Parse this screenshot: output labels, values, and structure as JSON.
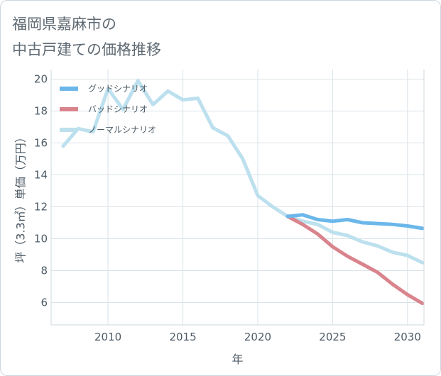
{
  "title_line1": "福岡県嘉麻市の",
  "title_line2": "中古戸建ての価格推移",
  "chart_data": {
    "type": "line",
    "xlabel": "年",
    "ylabel": "坪（3.3㎡）単価（万円）",
    "xlim": [
      2006.2,
      2031.1
    ],
    "ylim": [
      4.6,
      20.6
    ],
    "xticks": [
      2010,
      2015,
      2020,
      2025,
      2030
    ],
    "yticks": [
      6,
      8,
      10,
      12,
      14,
      16,
      18,
      20
    ],
    "grid": true,
    "legend_position": "top-left",
    "series": [
      {
        "name": "グッドシナリオ",
        "color": "#6bb7ea",
        "x": [
          2022,
          2023,
          2024,
          2025,
          2026,
          2027,
          2028,
          2029,
          2030,
          2031
        ],
        "y": [
          11.4,
          11.5,
          11.2,
          11.1,
          11.2,
          11.0,
          10.95,
          10.9,
          10.8,
          10.65
        ]
      },
      {
        "name": "バッドシナリオ",
        "color": "#d9848d",
        "x": [
          2022,
          2023,
          2024,
          2025,
          2026,
          2027,
          2028,
          2029,
          2030,
          2031
        ],
        "y": [
          11.4,
          10.9,
          10.3,
          9.5,
          8.9,
          8.4,
          7.9,
          7.15,
          6.5,
          5.95
        ]
      },
      {
        "name": "ノーマルシナリオ",
        "color": "#bde0ee",
        "x": [
          2007,
          2008,
          2009,
          2010,
          2011,
          2012,
          2013,
          2014,
          2015,
          2016,
          2017,
          2018,
          2019,
          2020,
          2021,
          2022,
          2023,
          2024,
          2025,
          2026,
          2027,
          2028,
          2029,
          2030,
          2031
        ],
        "y": [
          15.8,
          16.9,
          16.7,
          19.4,
          18.1,
          19.9,
          18.4,
          19.25,
          18.7,
          18.8,
          16.95,
          16.45,
          15.0,
          12.7,
          12.0,
          11.4,
          11.1,
          10.9,
          10.4,
          10.2,
          9.8,
          9.55,
          9.15,
          8.95,
          8.5
        ]
      }
    ]
  }
}
